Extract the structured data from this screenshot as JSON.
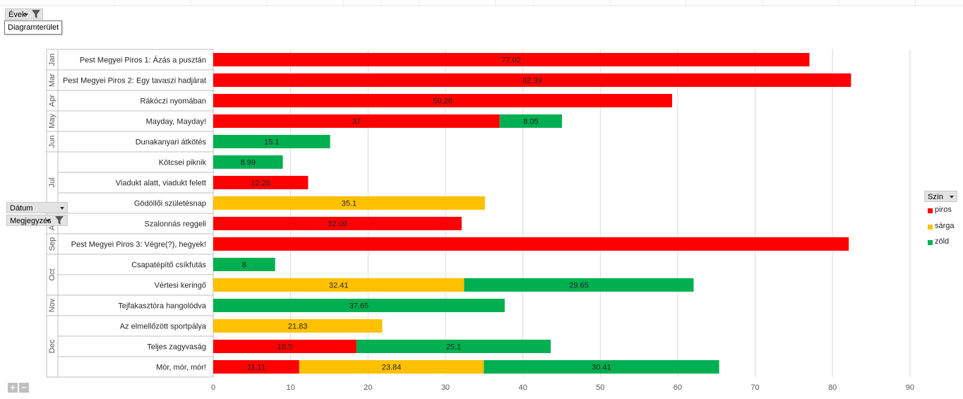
{
  "field_buttons": {
    "years": "Évek",
    "date": "Dátum",
    "note": "Megjegyzés",
    "color": "Szín"
  },
  "tooltip": "Diagramterület",
  "zoom": {
    "plus": "+",
    "minus": "−"
  },
  "colors": {
    "piros": "#ff0000",
    "sárga": "#ffc000",
    "zöld": "#00b050"
  },
  "chart_data": {
    "type": "bar",
    "orientation": "horizontal",
    "stacked": true,
    "xlim": [
      0,
      90
    ],
    "x_ticks": [
      0,
      10,
      20,
      30,
      40,
      50,
      60,
      70,
      80,
      90
    ],
    "grid": true,
    "legend_position": "right",
    "legend": [
      "piros",
      "sárga",
      "zöld"
    ],
    "months": [
      {
        "label": "Jan",
        "rows": 1
      },
      {
        "label": "Mar",
        "rows": 1
      },
      {
        "label": "Apr",
        "rows": 1
      },
      {
        "label": "May",
        "rows": 1
      },
      {
        "label": "Jun",
        "rows": 1
      },
      {
        "label": "Jul",
        "rows": 3
      },
      {
        "label": "Aug",
        "rows": 1
      },
      {
        "label": "Sep",
        "rows": 1
      },
      {
        "label": "Oct",
        "rows": 2
      },
      {
        "label": "Nov",
        "rows": 1
      },
      {
        "label": "Dec",
        "rows": 3
      }
    ],
    "categories": [
      "Pest Megyei Piros 1: Ázás a pusztán",
      "Pest Megyei Piros 2: Egy tavaszi hadjárat",
      "Rákóczi nyomában",
      "Mayday, Mayday!",
      "Dunakanyari átkötés",
      "Kötcsei piknik",
      "Viadukt alatt, viadukt felett",
      "Gödöllői születésnap",
      "Szalonnás reggeli",
      "Pest Megyei Piros 3: Végre(?), hegyek!",
      "Csapatépítő csíkfutás",
      "Vértesi keringő",
      "Tejfakasztóra hangolódva",
      "Az elmellőzött sportpálya",
      "Teljes zagyvaság",
      "Mór, mór, mór!"
    ],
    "series": [
      {
        "name": "piros",
        "values": [
          77.02,
          82.39,
          59.28,
          37,
          null,
          null,
          12.26,
          null,
          32.09,
          82.1,
          null,
          null,
          null,
          null,
          18.5,
          11.11
        ],
        "labels": [
          "77.02",
          "82.39",
          "59.28",
          "37",
          "",
          "",
          "12.26",
          "",
          "32.09",
          "",
          "",
          "",
          "",
          "",
          "18.5",
          "11.11"
        ]
      },
      {
        "name": "sárga",
        "values": [
          null,
          null,
          null,
          null,
          null,
          null,
          null,
          35.1,
          null,
          null,
          null,
          32.41,
          null,
          21.83,
          null,
          23.84
        ],
        "labels": [
          "",
          "",
          "",
          "",
          "",
          "",
          "",
          "35.1",
          "",
          "",
          "",
          "32.41",
          "",
          "21.83",
          "",
          "23.84"
        ]
      },
      {
        "name": "zöld",
        "values": [
          null,
          null,
          null,
          8.05,
          15.1,
          8.99,
          null,
          null,
          null,
          null,
          8,
          29.65,
          37.65,
          null,
          25.1,
          30.41
        ],
        "labels": [
          "",
          "",
          "",
          "8.05",
          "15.1",
          "8.99",
          "",
          "",
          "",
          "",
          "8",
          "29.65",
          "37.65",
          "",
          "25.1",
          "30.41"
        ]
      }
    ]
  }
}
